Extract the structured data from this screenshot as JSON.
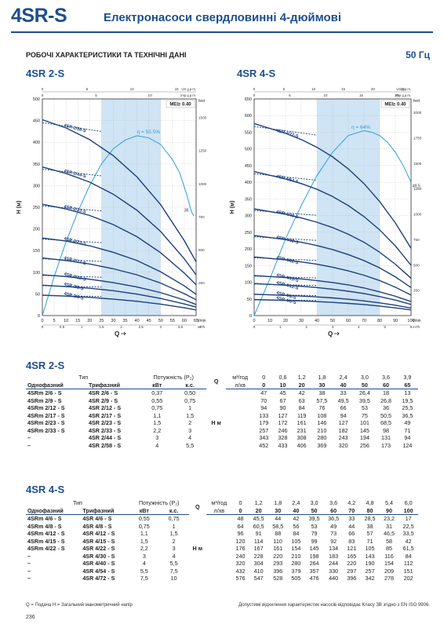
{
  "header": {
    "code": "4SR-S",
    "title": "Електронасоси свердловинні 4-дюймові",
    "subtitle": "РОБОЧІ ХАРАКТЕРИСТИКИ ТА ТЕХНІЧНІ ДАНІ",
    "frequency": "50 Гц"
  },
  "charts": {
    "left": {
      "name": "4SR 2-S",
      "mei": "MEI≥ 0.40",
      "eff": "η = 55.5%",
      "eff_end": "35",
      "top_unit": "US g.p.m.",
      "top_unit2": "Imp g.p.m.",
      "y_unit_left": "H (м)",
      "y_unit_right": "feet",
      "x_unit": "l/min",
      "x_unit2": "m³/h",
      "x_label": "Q",
      "x_ticks": [
        "0",
        "5",
        "10",
        "15",
        "20",
        "25",
        "30",
        "35",
        "40",
        "45",
        "50",
        "55",
        "60",
        "65"
      ],
      "x2_ticks": [
        "0",
        "0.5",
        "1",
        "1.5",
        "2",
        "2.5",
        "3",
        "3.5",
        "4"
      ],
      "us_ticks": [
        "0",
        "5",
        "10",
        "15"
      ],
      "imp_ticks": [
        "0",
        "5",
        "10"
      ],
      "y_ticks": [
        "0",
        "50",
        "100",
        "150",
        "200",
        "250",
        "300",
        "350",
        "400",
        "450",
        "500"
      ],
      "feet_ticks": [
        "250",
        "500",
        "750",
        "1000",
        "1250",
        "1500"
      ],
      "curves": [
        "4SR 2/58-S",
        "4SR 2/44-S",
        "4SR 2/33-S",
        "4SR 2/23-S",
        "4SR 2/17-S",
        "4SR 2/12-S",
        "4SR 2/9-S",
        "4SR 2/6-S"
      ]
    },
    "right": {
      "name": "4SR 4-S",
      "mei": "MEI≥ 0.40",
      "eff": "η = 64%",
      "eff_end": "49.5",
      "top_unit": "US g.p.m.",
      "top_unit2": "Imp g.p.m.",
      "y_unit_left": "H (м)",
      "y_unit_right": "feet",
      "x_unit": "l/min",
      "x_unit2": "m³/h",
      "x_label": "Q",
      "x_ticks": [
        "0",
        "10",
        "20",
        "30",
        "40",
        "50",
        "60",
        "70",
        "80",
        "90",
        "100"
      ],
      "x2_ticks": [
        "0",
        "1",
        "2",
        "3",
        "4",
        "5",
        "6"
      ],
      "us_ticks": [
        "0",
        "5",
        "10",
        "15",
        "20",
        "25"
      ],
      "imp_ticks": [
        "0",
        "5",
        "10",
        "15",
        "20"
      ],
      "y_ticks": [
        "0",
        "50",
        "100",
        "150",
        "200",
        "250",
        "300",
        "350",
        "400",
        "450",
        "500",
        "550",
        "600",
        "650"
      ],
      "feet_ticks": [
        "250",
        "500",
        "750",
        "1000",
        "1250",
        "1500",
        "1750",
        "2000"
      ],
      "curves": [
        "4SR 4/72-S",
        "4SR 4/54-S",
        "4SR 4/40-S",
        "4SR 4/30-S",
        "4SR 4/22-S",
        "4SR 4/15-S",
        "4SR 4/12-S",
        "4SR 4/8-S",
        "4SR 4/6-S"
      ]
    }
  },
  "table1": {
    "title": "4SR 2-S",
    "h_type": "Тип",
    "h_power": "Потужність (P₂)",
    "h_q": "Q",
    "h_h": "H м",
    "h_single": "Однофазний",
    "h_three": "Трифазний",
    "h_kw": "кВт",
    "h_hp": "к.с.",
    "h_m3": "м³/год",
    "h_lmin": "л/хв",
    "m3": [
      "0",
      "0,6",
      "1,2",
      "1,8",
      "2,4",
      "3,0",
      "3,6",
      "3,9"
    ],
    "lmin": [
      "0",
      "10",
      "20",
      "30",
      "40",
      "50",
      "60",
      "65"
    ],
    "rows": [
      {
        "s": "4SRm 2/6   - S",
        "t": "4SR 2/6   - S",
        "kw": "0,37",
        "hp": "0,50",
        "v": [
          "47",
          "45",
          "42",
          "38",
          "33",
          "26,4",
          "18",
          "13"
        ]
      },
      {
        "s": "4SRm 2/9   - S",
        "t": "4SR 2/9   - S",
        "kw": "0,55",
        "hp": "0,75",
        "v": [
          "70",
          "67",
          "63",
          "57,5",
          "49,5",
          "39,5",
          "26,8",
          "19,5"
        ]
      },
      {
        "s": "4SRm 2/12 - S",
        "t": "4SR 2/12 - S",
        "kw": "0,75",
        "hp": "1",
        "v": [
          "94",
          "90",
          "84",
          "76",
          "66",
          "53",
          "36",
          "25,5"
        ]
      },
      {
        "s": "4SRm 2/17 - S",
        "t": "4SR 2/17 - S",
        "kw": "1,1",
        "hp": "1,5",
        "v": [
          "133",
          "127",
          "119",
          "108",
          "94",
          "75",
          "50,5",
          "36,5"
        ]
      },
      {
        "s": "4SRm 2/23 - S",
        "t": "4SR 2/23 - S",
        "kw": "1,5",
        "hp": "2",
        "v": [
          "179",
          "172",
          "161",
          "146",
          "127",
          "101",
          "68,5",
          "49"
        ]
      },
      {
        "s": "4SRm 2/33 - S",
        "t": "4SR 2/33 - S",
        "kw": "2,2",
        "hp": "3",
        "v": [
          "257",
          "246",
          "231",
          "210",
          "182",
          "145",
          "98",
          "71"
        ]
      },
      {
        "s": "–",
        "t": "4SR 2/44 - S",
        "kw": "3",
        "hp": "4",
        "v": [
          "343",
          "328",
          "308",
          "280",
          "243",
          "194",
          "131",
          "94"
        ]
      },
      {
        "s": "–",
        "t": "4SR 2/58 - S",
        "kw": "4",
        "hp": "5,5",
        "v": [
          "452",
          "433",
          "406",
          "369",
          "320",
          "256",
          "173",
          "124"
        ]
      }
    ]
  },
  "table2": {
    "title": "4SR 4-S",
    "h_type": "Тип",
    "h_power": "Потужність (P₂)",
    "h_q": "Q",
    "h_h": "H м",
    "h_single": "Однофазний",
    "h_three": "Трифазний",
    "h_kw": "кВт",
    "h_hp": "к.с.",
    "h_m3": "м³/год",
    "h_lmin": "л/хв",
    "m3": [
      "0",
      "1,2",
      "1,8",
      "2,4",
      "3,0",
      "3,6",
      "4,2",
      "4,8",
      "5,4",
      "6,0"
    ],
    "lmin": [
      "0",
      "20",
      "30",
      "40",
      "50",
      "60",
      "70",
      "80",
      "90",
      "100"
    ],
    "rows": [
      {
        "s": "4SRm 4/6   - S",
        "t": "4SR 4/6   - S",
        "kw": "0,55",
        "hp": "0,75",
        "v": [
          "48",
          "45,5",
          "44",
          "42",
          "39,5",
          "36,5",
          "33",
          "28,5",
          "23,2",
          "17"
        ]
      },
      {
        "s": "4SRm 4/8   - S",
        "t": "4SR 4/8   - S",
        "kw": "0,75",
        "hp": "1",
        "v": [
          "64",
          "60,5",
          "58,5",
          "56",
          "53",
          "49",
          "44",
          "38",
          "31",
          "22,5"
        ]
      },
      {
        "s": "4SRm 4/12 - S",
        "t": "4SR 4/12 - S",
        "kw": "1,1",
        "hp": "1,5",
        "v": [
          "96",
          "91",
          "88",
          "84",
          "79",
          "73",
          "66",
          "57",
          "46,5",
          "33,5"
        ]
      },
      {
        "s": "4SRm 4/15 - S",
        "t": "4SR 4/15 - S",
        "kw": "1,5",
        "hp": "2",
        "v": [
          "120",
          "114",
          "110",
          "105",
          "99",
          "92",
          "83",
          "71",
          "58",
          "42"
        ]
      },
      {
        "s": "4SRm 4/22 - S",
        "t": "4SR 4/22 - S",
        "kw": "2,2",
        "hp": "3",
        "v": [
          "176",
          "167",
          "161",
          "154",
          "145",
          "134",
          "121",
          "105",
          "85",
          "61,5"
        ]
      },
      {
        "s": "–",
        "t": "4SR 4/30 - S",
        "kw": "3",
        "hp": "4",
        "v": [
          "240",
          "228",
          "220",
          "210",
          "198",
          "183",
          "165",
          "143",
          "116",
          "84"
        ]
      },
      {
        "s": "–",
        "t": "4SR 4/40 - S",
        "kw": "4",
        "hp": "5,5",
        "v": [
          "320",
          "304",
          "293",
          "280",
          "264",
          "244",
          "220",
          "190",
          "154",
          "112"
        ]
      },
      {
        "s": "–",
        "t": "4SR 4/54 - S",
        "kw": "5,5",
        "hp": "7,5",
        "v": [
          "432",
          "410",
          "396",
          "379",
          "357",
          "330",
          "297",
          "257",
          "209",
          "151"
        ]
      },
      {
        "s": "–",
        "t": "4SR 4/72 - S",
        "kw": "7,5",
        "hp": "10",
        "v": [
          "576",
          "547",
          "528",
          "505",
          "476",
          "440",
          "396",
          "342",
          "278",
          "202"
        ]
      }
    ]
  },
  "footer": {
    "legend": "Q = Подача H = Загальний манометричний напір",
    "note": "Допустимі відхилення характеристик насосів відповідає Класу 3B згідно з EN ISO 9906.",
    "page": "236"
  }
}
